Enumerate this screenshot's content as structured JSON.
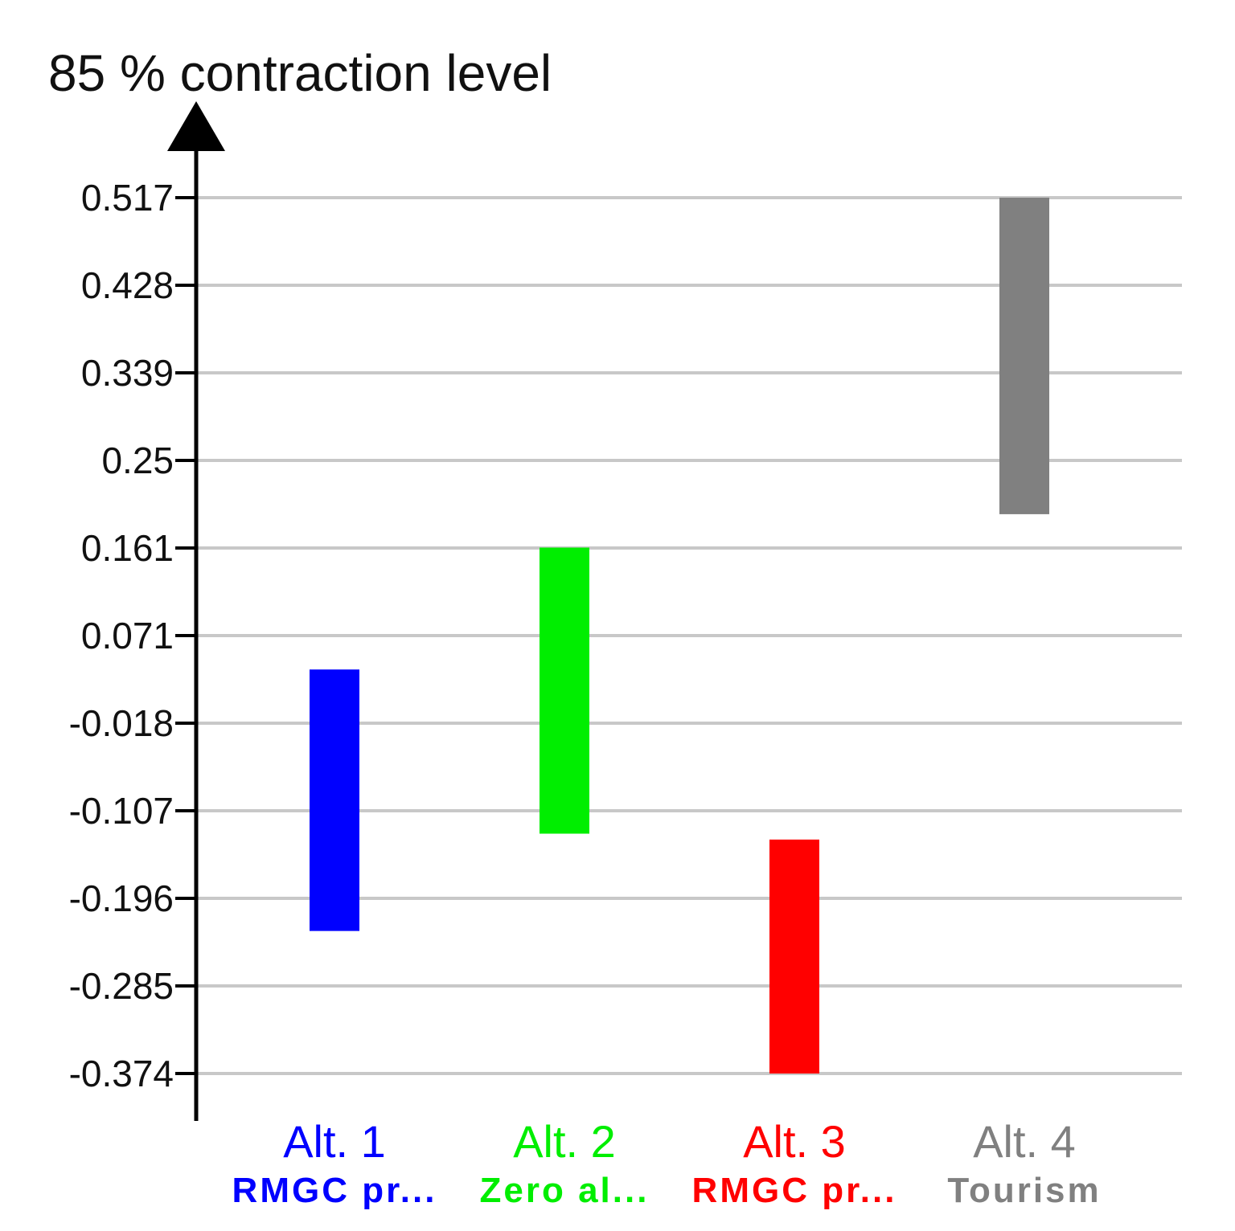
{
  "chart_data": {
    "type": "bar",
    "title": "85 % contraction level",
    "yticks": [
      "0.517",
      "0.428",
      "0.339",
      "0.25",
      "0.161",
      "0.071",
      "-0.018",
      "-0.107",
      "-0.196",
      "-0.285",
      "-0.374"
    ],
    "ylim": [
      -0.374,
      0.517
    ],
    "grid": true,
    "categories": [
      {
        "label": "Alt. 1",
        "sublabel": "RMGC pr...",
        "color": "#0000ff"
      },
      {
        "label": "Alt. 2",
        "sublabel": "Zero al...",
        "color": "#00ee00"
      },
      {
        "label": "Alt. 3",
        "sublabel": "RMGC pr...",
        "color": "#ff0000"
      },
      {
        "label": "Alt. 4",
        "sublabel": "Tourism",
        "color": "#808080"
      }
    ],
    "intervals": [
      {
        "low": -0.229,
        "high": 0.037
      },
      {
        "low": -0.13,
        "high": 0.161
      },
      {
        "low": -0.374,
        "high": -0.136
      },
      {
        "low": 0.195,
        "high": 0.517
      }
    ]
  }
}
